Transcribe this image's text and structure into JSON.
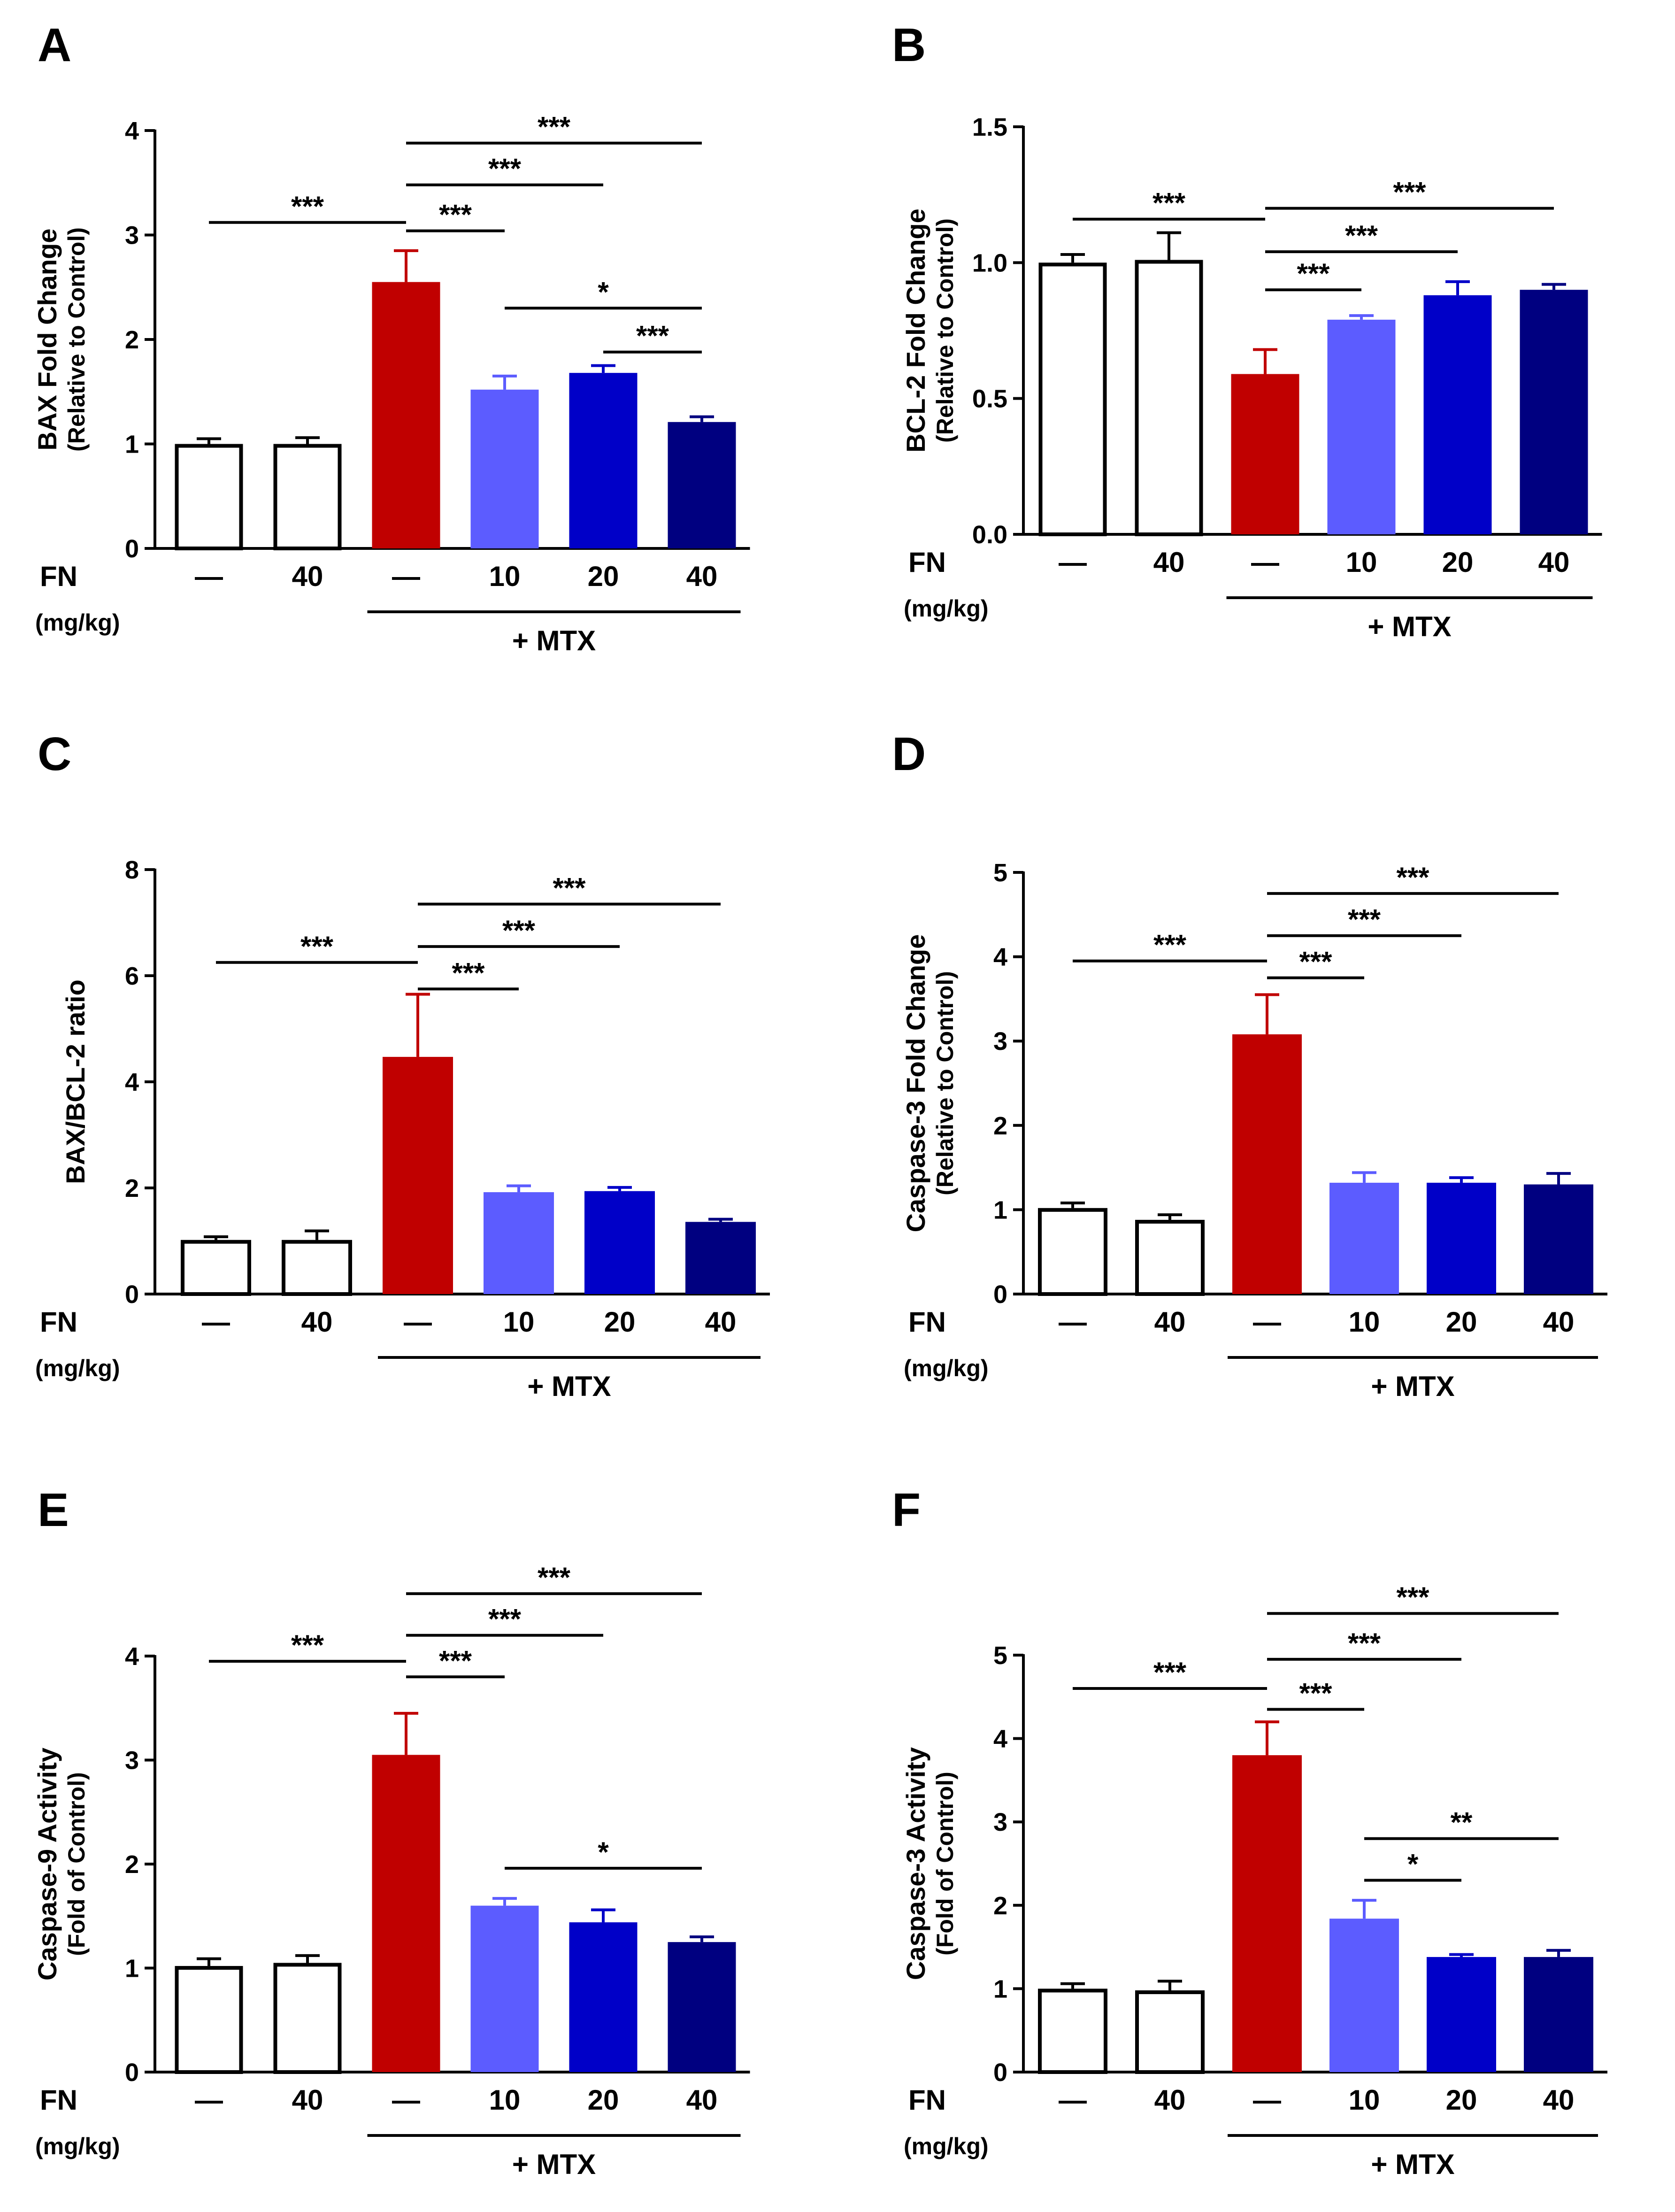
{
  "figure": {
    "x_row_label": "FN",
    "x_unit_label": "(mg/kg)",
    "group_label": "+ MTX",
    "categories": [
      "—",
      "40",
      "—",
      "10",
      "20",
      "40"
    ],
    "bar_colors": [
      "#ffffff",
      "#ffffff",
      "#c00000",
      "#5c5cff",
      "#0000c8",
      "#000080"
    ],
    "bar_outline": "#000000"
  },
  "chart_data": [
    {
      "panel": "A",
      "type": "bar",
      "ylabel": "BAX Fold Change",
      "ylabel2": "(Relative to Control)",
      "ylim": [
        0,
        4
      ],
      "yticks": [
        "0",
        "1",
        "2",
        "3",
        "4"
      ],
      "ytick_values": [
        0,
        1,
        2,
        3,
        4
      ],
      "values": [
        1.0,
        1.0,
        2.55,
        1.52,
        1.68,
        1.21
      ],
      "errors": [
        0.05,
        0.06,
        0.3,
        0.13,
        0.07,
        0.05
      ],
      "significance": [
        {
          "from": 0,
          "to": 2,
          "level": 3.12,
          "label": "***"
        },
        {
          "from": 2,
          "to": 3,
          "level": 3.04,
          "label": "***"
        },
        {
          "from": 2,
          "to": 4,
          "level": 3.48,
          "label": "***"
        },
        {
          "from": 2,
          "to": 5,
          "level": 3.88,
          "label": "***"
        },
        {
          "from": 3,
          "to": 5,
          "level": 2.3,
          "label": "*"
        },
        {
          "from": 4,
          "to": 5,
          "level": 1.88,
          "label": "***"
        }
      ]
    },
    {
      "panel": "B",
      "type": "bar",
      "ylabel": "BCL-2 Fold Change",
      "ylabel2": "(Relative to Control)",
      "ylim": [
        0,
        1.5
      ],
      "yticks": [
        "0.0",
        "0.5",
        "1.0",
        "1.5"
      ],
      "ytick_values": [
        0,
        0.5,
        1.0,
        1.5
      ],
      "values": [
        1.0,
        1.01,
        0.59,
        0.79,
        0.88,
        0.9
      ],
      "errors": [
        0.03,
        0.1,
        0.09,
        0.015,
        0.05,
        0.02
      ],
      "significance": [
        {
          "from": 0,
          "to": 2,
          "level": 1.16,
          "label": "***"
        },
        {
          "from": 2,
          "to": 3,
          "level": 0.9,
          "label": "***"
        },
        {
          "from": 2,
          "to": 4,
          "level": 1.04,
          "label": "***"
        },
        {
          "from": 2,
          "to": 5,
          "level": 1.2,
          "label": "***"
        }
      ]
    },
    {
      "panel": "C",
      "type": "bar",
      "ylabel": "BAX/BCL-2 ratio",
      "ylabel2": "",
      "ylim": [
        0,
        8
      ],
      "yticks": [
        "0",
        "2",
        "4",
        "6",
        "8"
      ],
      "ytick_values": [
        0,
        2,
        4,
        6,
        8
      ],
      "values": [
        1.02,
        1.02,
        4.47,
        1.92,
        1.94,
        1.36
      ],
      "errors": [
        0.06,
        0.17,
        1.18,
        0.12,
        0.07,
        0.05
      ],
      "significance": [
        {
          "from": 0,
          "to": 2,
          "level": 6.25,
          "label": "***"
        },
        {
          "from": 2,
          "to": 3,
          "level": 5.75,
          "label": "***"
        },
        {
          "from": 2,
          "to": 4,
          "level": 6.55,
          "label": "***"
        },
        {
          "from": 2,
          "to": 5,
          "level": 7.35,
          "label": "***"
        }
      ]
    },
    {
      "panel": "D",
      "type": "bar",
      "ylabel": "Caspase-3 Fold Change",
      "ylabel2": "(Relative to Control)",
      "ylim": [
        0,
        5
      ],
      "yticks": [
        "0",
        "1",
        "2",
        "3",
        "4",
        "5"
      ],
      "ytick_values": [
        0,
        1,
        2,
        3,
        4,
        5
      ],
      "values": [
        1.02,
        0.88,
        3.08,
        1.32,
        1.32,
        1.3
      ],
      "errors": [
        0.06,
        0.06,
        0.47,
        0.12,
        0.06,
        0.13
      ],
      "significance": [
        {
          "from": 0,
          "to": 2,
          "level": 3.95,
          "label": "***"
        },
        {
          "from": 2,
          "to": 3,
          "level": 3.75,
          "label": "***"
        },
        {
          "from": 2,
          "to": 4,
          "level": 4.25,
          "label": "***"
        },
        {
          "from": 2,
          "to": 5,
          "level": 4.75,
          "label": "***"
        }
      ]
    },
    {
      "panel": "E",
      "type": "bar",
      "ylabel": "Caspase-9 Activity",
      "ylabel2": "(Fold of Control)",
      "ylim": [
        0,
        4
      ],
      "yticks": [
        "0",
        "1",
        "2",
        "3",
        "4"
      ],
      "ytick_values": [
        0,
        1,
        2,
        3,
        4
      ],
      "values": [
        1.02,
        1.05,
        3.05,
        1.6,
        1.44,
        1.25
      ],
      "errors": [
        0.07,
        0.07,
        0.4,
        0.07,
        0.12,
        0.05
      ],
      "significance": [
        {
          "from": 0,
          "to": 2,
          "level": 3.95,
          "label": "***"
        },
        {
          "from": 2,
          "to": 3,
          "level": 3.8,
          "label": "***"
        },
        {
          "from": 2,
          "to": 4,
          "level": 4.2,
          "label": "***"
        },
        {
          "from": 2,
          "to": 5,
          "level": 4.6,
          "label": "***"
        },
        {
          "from": 3,
          "to": 5,
          "level": 1.96,
          "label": "*"
        }
      ]
    },
    {
      "panel": "F",
      "type": "bar",
      "ylabel": "Caspase-3 Activity",
      "ylabel2": "(Fold of Control)",
      "ylim": [
        0,
        5
      ],
      "yticks": [
        "0",
        "1",
        "2",
        "3",
        "4",
        "5"
      ],
      "ytick_values": [
        0,
        1,
        2,
        3,
        4,
        5
      ],
      "values": [
        1.0,
        0.98,
        3.8,
        1.84,
        1.38,
        1.38
      ],
      "errors": [
        0.06,
        0.11,
        0.4,
        0.22,
        0.03,
        0.08
      ],
      "significance": [
        {
          "from": 0,
          "to": 2,
          "level": 4.6,
          "label": "***"
        },
        {
          "from": 2,
          "to": 3,
          "level": 4.35,
          "label": "***"
        },
        {
          "from": 2,
          "to": 4,
          "level": 4.95,
          "label": "***"
        },
        {
          "from": 2,
          "to": 5,
          "level": 5.5,
          "label": "***"
        },
        {
          "from": 3,
          "to": 4,
          "level": 2.3,
          "label": "*"
        },
        {
          "from": 3,
          "to": 5,
          "level": 2.8,
          "label": "**"
        }
      ]
    }
  ]
}
